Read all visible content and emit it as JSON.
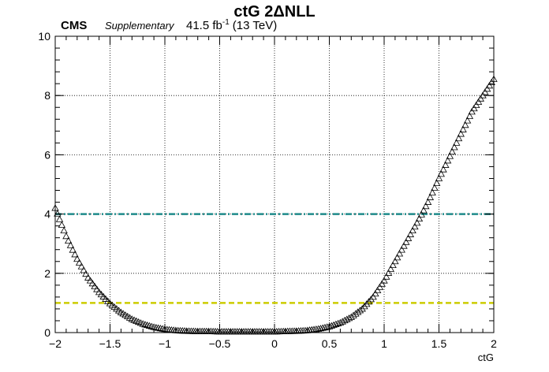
{
  "header": {
    "title": "ctG 2ΔNLL",
    "experiment": "CMS",
    "tag": "Supplementary",
    "lumi": "41.5 fb",
    "lumi_sup": "-1",
    "energy": "(13 TeV)"
  },
  "chart_data": {
    "type": "scatter",
    "title": "ctG 2ΔNLL",
    "xlabel": "ctG",
    "ylabel": "",
    "xlim": [
      -2,
      2
    ],
    "ylim": [
      0,
      10
    ],
    "grid": true,
    "xticks": [
      -2,
      -1.5,
      -1,
      -0.5,
      0,
      0.5,
      1,
      1.5,
      2
    ],
    "xtick_labels": [
      "−2",
      "−1.5",
      "−1",
      "−0.5",
      "0",
      "0.5",
      "1",
      "1.5",
      "2"
    ],
    "yticks": [
      0,
      2,
      4,
      6,
      8,
      10
    ],
    "ytick_labels": [
      "0",
      "2",
      "4",
      "6",
      "8",
      "10"
    ],
    "marker": "open-triangle",
    "series": [
      {
        "x": [
          -2.0,
          -1.9,
          -1.8,
          -1.7,
          -1.6,
          -1.5,
          -1.4,
          -1.3,
          -1.2,
          -1.1,
          -1.0,
          -0.9,
          -0.8,
          -0.7,
          -0.6,
          -0.5,
          -0.4,
          -0.3,
          -0.2,
          -0.1,
          0.0,
          0.1,
          0.2,
          0.3,
          0.4,
          0.5,
          0.6,
          0.7,
          0.8,
          0.9,
          1.0,
          1.1,
          1.2,
          1.3,
          1.4,
          1.5,
          1.6,
          1.7,
          1.8,
          1.9,
          2.0
        ],
        "y": [
          4.2,
          3.25,
          2.48,
          1.85,
          1.36,
          0.98,
          0.68,
          0.45,
          0.29,
          0.18,
          0.11,
          0.07,
          0.05,
          0.04,
          0.04,
          0.03,
          0.03,
          0.03,
          0.03,
          0.03,
          0.03,
          0.04,
          0.05,
          0.07,
          0.12,
          0.2,
          0.33,
          0.52,
          0.8,
          1.2,
          1.75,
          2.4,
          3.05,
          3.7,
          4.4,
          5.2,
          5.95,
          6.7,
          7.45,
          8.0,
          8.55
        ]
      }
    ],
    "reference_lines": [
      {
        "y": 4,
        "color": "#1f8a8a",
        "style": "dash-dot"
      },
      {
        "y": 1,
        "color": "#cccc00",
        "style": "dashed"
      }
    ]
  }
}
